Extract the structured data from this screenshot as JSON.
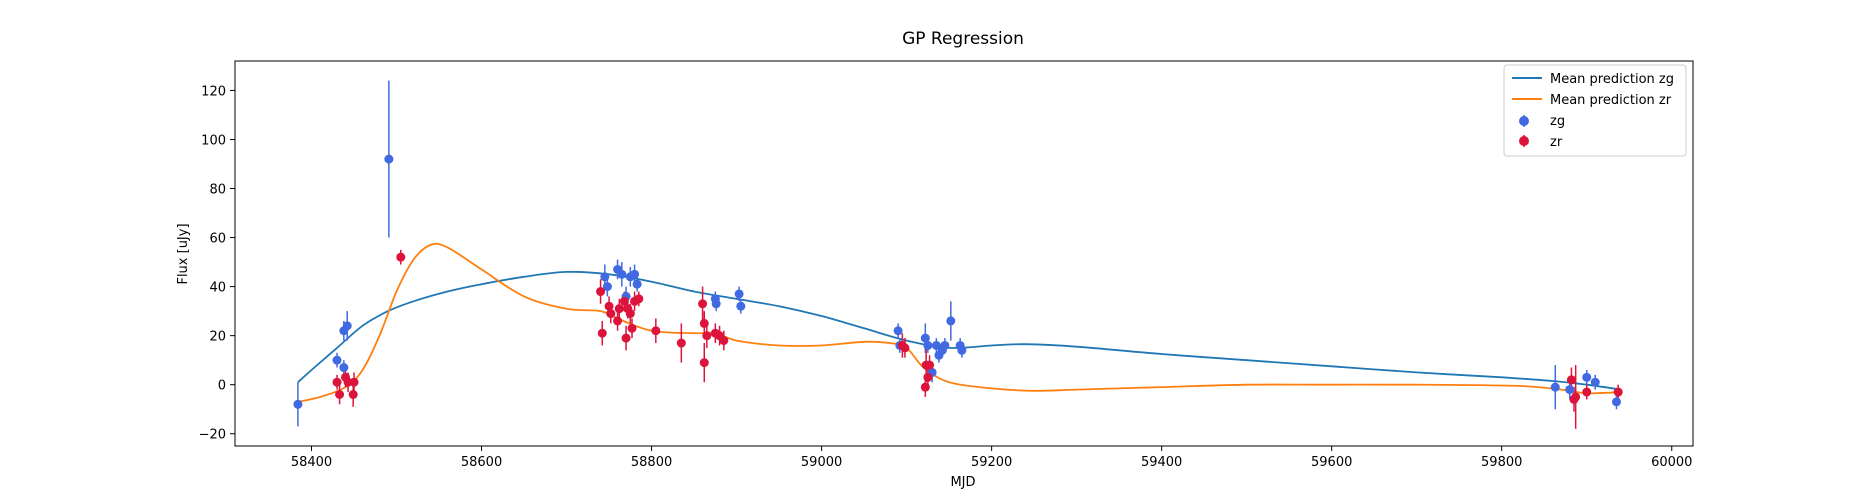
{
  "chart_data": {
    "type": "scatter",
    "title": "GP Regression",
    "xlabel": "MJD",
    "ylabel": "Flux [uJy]",
    "xlim": [
      58310,
      60025
    ],
    "ylim": [
      -25,
      132
    ],
    "xticks": [
      58400,
      58600,
      58800,
      59000,
      59200,
      59400,
      59600,
      59800,
      60000
    ],
    "yticks": [
      -20,
      0,
      20,
      40,
      60,
      80,
      100,
      120
    ],
    "grid": false,
    "legend_position": "top-right",
    "legend": [
      "Mean prediction zg",
      "Mean prediction zr",
      "zg",
      "zr"
    ],
    "colors": {
      "mean_zg": "#1f77b4",
      "mean_zr": "#ff7f0e",
      "zg": "#4169e1",
      "zr": "#dc143c"
    },
    "series": [
      {
        "name": "Mean prediction zg",
        "kind": "line",
        "color": "#1f77b4",
        "points": [
          [
            58384,
            1
          ],
          [
            58400,
            6
          ],
          [
            58430,
            15
          ],
          [
            58460,
            24
          ],
          [
            58490,
            30
          ],
          [
            58520,
            34
          ],
          [
            58560,
            38
          ],
          [
            58600,
            41
          ],
          [
            58650,
            44
          ],
          [
            58700,
            46
          ],
          [
            58750,
            45
          ],
          [
            58800,
            42
          ],
          [
            58850,
            38
          ],
          [
            58900,
            35
          ],
          [
            58950,
            32
          ],
          [
            59000,
            28
          ],
          [
            59050,
            23
          ],
          [
            59100,
            18
          ],
          [
            59150,
            15
          ],
          [
            59200,
            16
          ],
          [
            59240,
            16.5
          ],
          [
            59300,
            15.5
          ],
          [
            59400,
            12.5
          ],
          [
            59500,
            10
          ],
          [
            59600,
            7.5
          ],
          [
            59700,
            5
          ],
          [
            59800,
            3
          ],
          [
            59860,
            1.5
          ],
          [
            59900,
            0
          ],
          [
            59940,
            -2
          ]
        ]
      },
      {
        "name": "Mean prediction zr",
        "kind": "line",
        "color": "#ff7f0e",
        "points": [
          [
            58384,
            -7
          ],
          [
            58410,
            -5
          ],
          [
            58440,
            -1
          ],
          [
            58460,
            6
          ],
          [
            58480,
            20
          ],
          [
            58500,
            38
          ],
          [
            58520,
            51
          ],
          [
            58540,
            57
          ],
          [
            58560,
            56
          ],
          [
            58600,
            47
          ],
          [
            58650,
            36
          ],
          [
            58700,
            31
          ],
          [
            58740,
            30
          ],
          [
            58760,
            27
          ],
          [
            58800,
            22
          ],
          [
            58850,
            21
          ],
          [
            58875,
            21
          ],
          [
            58900,
            18
          ],
          [
            58950,
            16
          ],
          [
            59000,
            16
          ],
          [
            59050,
            17.5
          ],
          [
            59080,
            17
          ],
          [
            59100,
            15
          ],
          [
            59120,
            7
          ],
          [
            59150,
            1
          ],
          [
            59200,
            -1.5
          ],
          [
            59250,
            -2.5
          ],
          [
            59300,
            -2
          ],
          [
            59400,
            -1
          ],
          [
            59500,
            0
          ],
          [
            59600,
            0
          ],
          [
            59700,
            0
          ],
          [
            59820,
            -0.5
          ],
          [
            59870,
            -2
          ],
          [
            59900,
            -3.5
          ],
          [
            59940,
            -3
          ]
        ]
      },
      {
        "name": "zg",
        "kind": "errorbar",
        "color": "#4169e1",
        "points": [
          [
            58384,
            -8,
            9
          ],
          [
            58430,
            10,
            3
          ],
          [
            58438,
            22,
            4
          ],
          [
            58442,
            24,
            6
          ],
          [
            58438,
            7,
            3
          ],
          [
            58491,
            92,
            32
          ],
          [
            58745,
            44,
            5
          ],
          [
            58748,
            40,
            4
          ],
          [
            58760,
            47,
            4
          ],
          [
            58765,
            45,
            5
          ],
          [
            58770,
            36,
            4
          ],
          [
            58775,
            44,
            4
          ],
          [
            58780,
            45,
            4
          ],
          [
            58783,
            41,
            3
          ],
          [
            58875,
            35,
            3
          ],
          [
            58876,
            33,
            3
          ],
          [
            58903,
            37,
            3
          ],
          [
            58905,
            32,
            3
          ],
          [
            59090,
            22,
            3
          ],
          [
            59092,
            16,
            3
          ],
          [
            59122,
            19,
            6
          ],
          [
            59125,
            16,
            3
          ],
          [
            59130,
            5,
            4
          ],
          [
            59135,
            16,
            3
          ],
          [
            59138,
            12,
            3
          ],
          [
            59142,
            14,
            3
          ],
          [
            59145,
            16,
            3
          ],
          [
            59152,
            26,
            8
          ],
          [
            59163,
            16,
            3
          ],
          [
            59165,
            14,
            3
          ],
          [
            59863,
            -1,
            9
          ],
          [
            59880,
            -2,
            4
          ],
          [
            59900,
            3,
            3
          ],
          [
            59910,
            1,
            3
          ],
          [
            59935,
            -7,
            3
          ]
        ],
        "point_format": "[MJD, flux, error]"
      },
      {
        "name": "zr",
        "kind": "errorbar",
        "color": "#dc143c",
        "points": [
          [
            58430,
            1,
            3
          ],
          [
            58433,
            -4,
            4
          ],
          [
            58440,
            3,
            4
          ],
          [
            58443,
            1,
            4
          ],
          [
            58450,
            1,
            4
          ],
          [
            58449,
            -4,
            5
          ],
          [
            58505,
            52,
            3
          ],
          [
            58740,
            38,
            5
          ],
          [
            58742,
            21,
            5
          ],
          [
            58750,
            32,
            4
          ],
          [
            58752,
            29,
            4
          ],
          [
            58760,
            26,
            4
          ],
          [
            58762,
            31,
            4
          ],
          [
            58768,
            34,
            4
          ],
          [
            58770,
            19,
            5
          ],
          [
            58772,
            31,
            4
          ],
          [
            58775,
            29,
            4
          ],
          [
            58777,
            23,
            4
          ],
          [
            58780,
            34,
            4
          ],
          [
            58785,
            35,
            3
          ],
          [
            58805,
            22,
            5
          ],
          [
            58835,
            17,
            8
          ],
          [
            58860,
            33,
            7
          ],
          [
            58862,
            25,
            5
          ],
          [
            58865,
            20,
            5
          ],
          [
            58862,
            9,
            8
          ],
          [
            58875,
            21,
            4
          ],
          [
            58880,
            20,
            4
          ],
          [
            58885,
            18,
            4
          ],
          [
            59095,
            16,
            5
          ],
          [
            59098,
            15,
            4
          ],
          [
            59123,
            8,
            7
          ],
          [
            59125,
            3,
            4
          ],
          [
            59122,
            -1,
            4
          ],
          [
            59127,
            8,
            4
          ],
          [
            59882,
            2,
            5
          ],
          [
            59885,
            -6,
            5
          ],
          [
            59887,
            -5,
            13
          ],
          [
            59900,
            -3,
            3
          ],
          [
            59937,
            -3,
            3
          ]
        ],
        "point_format": "[MJD, flux, error]"
      }
    ]
  }
}
